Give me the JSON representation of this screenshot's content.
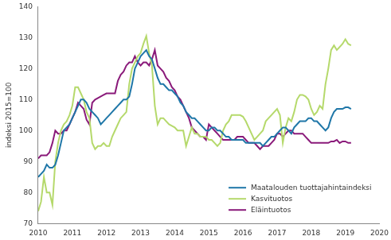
{
  "chart_data": {
    "type": "line",
    "y_label": "indeksi 2015=100",
    "x": [
      2010,
      2010.083,
      2010.167,
      2010.25,
      2010.333,
      2010.417,
      2010.5,
      2010.583,
      2010.667,
      2010.75,
      2010.833,
      2010.917,
      2011,
      2011.083,
      2011.167,
      2011.25,
      2011.333,
      2011.417,
      2011.5,
      2011.583,
      2011.667,
      2011.75,
      2011.833,
      2011.917,
      2012,
      2012.083,
      2012.167,
      2012.25,
      2012.333,
      2012.417,
      2012.5,
      2012.583,
      2012.667,
      2012.75,
      2012.833,
      2012.917,
      2013,
      2013.083,
      2013.167,
      2013.25,
      2013.333,
      2013.417,
      2013.5,
      2013.583,
      2013.667,
      2013.75,
      2013.833,
      2013.917,
      2014,
      2014.083,
      2014.167,
      2014.25,
      2014.333,
      2014.417,
      2014.5,
      2014.583,
      2014.667,
      2014.75,
      2014.833,
      2014.917,
      2015,
      2015.083,
      2015.167,
      2015.25,
      2015.333,
      2015.417,
      2015.5,
      2015.583,
      2015.667,
      2015.75,
      2015.833,
      2015.917,
      2016,
      2016.083,
      2016.167,
      2016.25,
      2016.333,
      2016.417,
      2016.5,
      2016.583,
      2016.667,
      2016.75,
      2016.833,
      2016.917,
      2017,
      2017.083,
      2017.167,
      2017.25,
      2017.333,
      2017.417,
      2017.5,
      2017.583,
      2017.667,
      2017.75,
      2017.833,
      2017.917,
      2018,
      2018.083,
      2018.167,
      2018.25,
      2018.333,
      2018.417,
      2018.5,
      2018.583,
      2018.667,
      2018.75,
      2018.833,
      2018.917,
      2019,
      2019.083,
      2019.167
    ],
    "series": [
      {
        "name": "Maatalouden tuottajahintaindeksi",
        "color": "#1f77a8",
        "values": [
          85,
          86,
          87,
          89,
          88,
          88,
          89,
          92,
          96,
          100,
          101,
          102,
          104,
          106,
          108,
          110,
          110,
          109,
          107,
          106,
          105,
          104,
          102,
          103,
          104,
          105,
          106,
          107,
          108,
          109,
          110,
          110,
          111,
          115,
          120,
          122,
          124,
          125,
          126,
          124,
          123,
          120,
          117,
          115,
          115,
          114,
          113,
          113,
          112,
          111,
          109,
          108,
          106,
          105,
          104,
          104,
          103,
          102,
          101,
          100,
          100,
          101,
          101,
          100,
          100,
          99,
          98,
          98,
          97,
          97,
          97,
          97,
          97,
          96,
          96,
          96,
          96,
          96,
          96,
          95,
          96,
          97,
          98,
          98,
          99,
          100,
          101,
          101,
          100,
          99,
          101,
          102,
          103,
          103,
          103,
          104,
          104,
          103,
          103,
          102,
          101,
          100,
          101,
          104,
          106,
          107,
          107,
          107,
          107.5,
          107.5,
          107
        ]
      },
      {
        "name": "Kasvituotos",
        "color": "#b5d96b",
        "values": [
          74,
          77,
          85,
          80,
          80,
          76,
          90,
          96,
          100,
          102,
          103,
          105,
          108,
          114,
          114,
          112,
          110,
          106,
          104,
          96,
          94,
          95,
          95,
          96,
          95,
          95,
          98,
          100,
          102,
          104,
          105,
          106,
          115,
          120,
          122,
          124,
          125,
          128,
          130.5,
          125,
          121,
          108,
          102,
          104,
          104,
          103,
          102,
          101.5,
          101,
          100,
          100,
          100,
          95,
          98,
          101,
          99,
          99,
          98,
          98,
          98,
          97,
          97,
          96,
          95,
          96,
          100,
          102,
          103,
          105,
          105,
          105,
          105,
          104.5,
          103,
          101,
          99,
          97,
          98,
          99,
          100,
          103,
          104,
          105,
          106,
          107,
          105,
          96,
          101,
          104,
          103,
          106,
          110,
          111.5,
          111.5,
          111,
          110,
          107,
          105,
          106,
          108,
          107,
          115,
          120,
          126,
          127.5,
          126,
          127,
          128,
          129.5,
          128,
          127.5
        ]
      },
      {
        "name": "Eläintuotos",
        "color": "#8a1a7a",
        "values": [
          91,
          92,
          92,
          92,
          93,
          96,
          100,
          99,
          99,
          100,
          100,
          102,
          104,
          106,
          109,
          108,
          107,
          103.5,
          102,
          109,
          110,
          110.5,
          111,
          111.5,
          112,
          112,
          112,
          112,
          116,
          118,
          119,
          121,
          122,
          122,
          124,
          122,
          121,
          122,
          122,
          121,
          123,
          126,
          121,
          120,
          119,
          117,
          116,
          114,
          113,
          111,
          110,
          108,
          106,
          104,
          101,
          100,
          99,
          98,
          98,
          97,
          102,
          101,
          100,
          99,
          98,
          97,
          97,
          97,
          97,
          97,
          98,
          98,
          98,
          97,
          96,
          96,
          96,
          95,
          94,
          95,
          95,
          95,
          96,
          97,
          99,
          99,
          98,
          99,
          100,
          100,
          99,
          99,
          99,
          99,
          98,
          97,
          96,
          96,
          96,
          96,
          96,
          96,
          96,
          96.5,
          96.5,
          97,
          96,
          96.5,
          96.5,
          96,
          96
        ]
      }
    ],
    "xlim": [
      2010,
      2020
    ],
    "xticks": [
      2010,
      2011,
      2012,
      2013,
      2014,
      2015,
      2016,
      2017,
      2018,
      2019,
      2020
    ],
    "ylim": [
      70,
      140
    ],
    "yticks": [
      70,
      80,
      90,
      100,
      110,
      120,
      130,
      140
    ],
    "grid": false,
    "legend": "lower right"
  }
}
